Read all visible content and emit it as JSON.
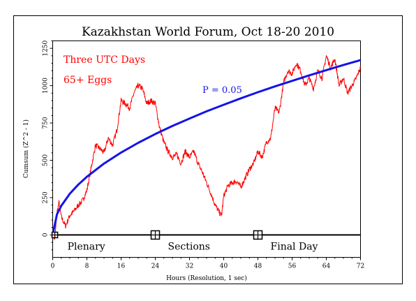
{
  "chart_data": {
    "type": "line",
    "title": "Kazakhstan World Forum, Oct 18-20 2010",
    "xlabel": "Hours (Resolution, 1 sec)",
    "ylabel": "Cumsum (Z^2 - 1)",
    "xlim": [
      0,
      72
    ],
    "ylim": [
      -150,
      1300
    ],
    "x_ticks": [
      0,
      8,
      16,
      24,
      32,
      40,
      48,
      56,
      64,
      72
    ],
    "y_ticks": [
      0,
      250,
      500,
      750,
      1000,
      1250
    ],
    "grid": false,
    "annotations": {
      "days": "Three UTC Days",
      "eggs": "65+ Eggs",
      "probability": "P = 0.05"
    },
    "event_markers": [
      {
        "x": 0.5,
        "label": "Plenary"
      },
      {
        "x": 24,
        "label": "Sections"
      },
      {
        "x": 48,
        "label": "Final Day"
      }
    ],
    "series": [
      {
        "color": "#ff0000",
        "x": [
          0,
          0.5,
          1,
          1.5,
          2,
          3,
          4,
          5,
          6,
          7,
          8,
          9,
          10,
          11,
          12,
          13,
          14,
          15,
          16,
          17,
          18,
          19,
          20,
          21,
          22,
          23,
          24,
          25,
          26,
          27,
          28,
          29,
          30,
          31,
          32,
          33,
          34,
          35,
          36,
          37,
          38,
          39,
          39.5,
          40,
          41,
          42,
          43,
          44,
          45,
          46,
          47,
          48,
          49,
          50,
          51,
          52,
          53,
          54,
          55,
          56,
          57,
          58,
          59,
          60,
          61,
          62,
          63,
          64,
          65,
          66,
          67,
          68,
          69,
          70,
          71,
          72
        ],
        "y": [
          0,
          -30,
          150,
          220,
          120,
          60,
          130,
          160,
          200,
          230,
          300,
          450,
          600,
          580,
          550,
          650,
          600,
          700,
          900,
          880,
          850,
          950,
          1000,
          980,
          880,
          900,
          880,
          720,
          620,
          560,
          520,
          540,
          480,
          560,
          520,
          560,
          480,
          420,
          350,
          280,
          200,
          150,
          130,
          260,
          330,
          350,
          360,
          320,
          380,
          440,
          480,
          560,
          520,
          620,
          650,
          850,
          820,
          1020,
          1100,
          1080,
          1150,
          1100,
          1000,
          1050,
          980,
          1100,
          1050,
          1200,
          1120,
          1180,
          1000,
          1050,
          950,
          1000,
          1050,
          1120
        ]
      },
      {
        "name": "P = 0.05",
        "color": "#1414e6",
        "curve": "1.96*sqrt(2*N) envelope",
        "x": [
          0,
          1,
          2,
          4,
          6,
          8,
          12,
          16,
          20,
          24,
          28,
          32,
          36,
          40,
          44,
          48,
          52,
          56,
          60,
          64,
          68,
          72
        ],
        "y": [
          0,
          138,
          195,
          276,
          338,
          390,
          478,
          552,
          617,
          676,
          730,
          780,
          828,
          872,
          915,
          956,
          995,
          1032,
          1069,
          1104,
          1138,
          1171
        ]
      }
    ]
  }
}
